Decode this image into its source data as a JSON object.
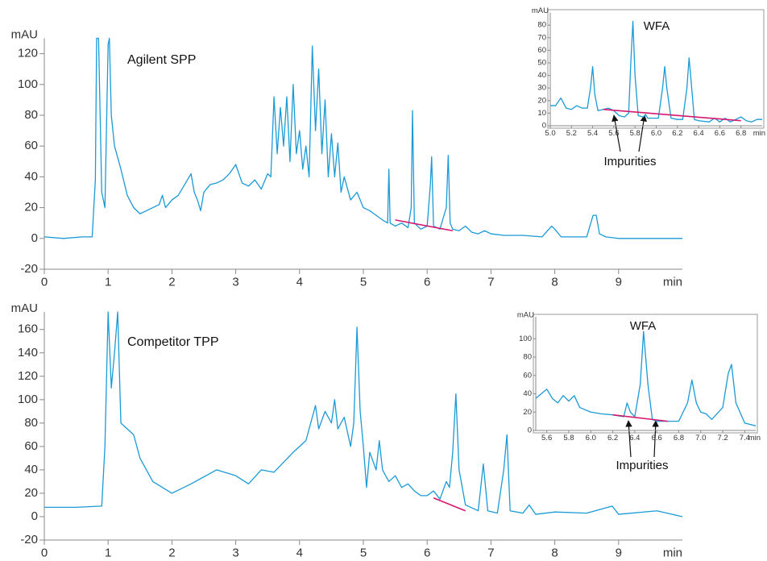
{
  "chart_data": [
    {
      "type": "line",
      "title": "Agilent SPP",
      "ylabel": "mAU",
      "xlabel": "min",
      "xlim": [
        0,
        10
      ],
      "ylim": [
        -20,
        130
      ],
      "xticks": [
        0,
        1,
        2,
        3,
        4,
        5,
        6,
        7,
        8,
        9
      ],
      "yticks": [
        -20,
        0,
        20,
        40,
        60,
        80,
        100,
        120
      ],
      "series": [
        {
          "color": "#1a9ad6",
          "x": [
            0,
            0.3,
            0.6,
            0.75,
            0.8,
            0.82,
            0.85,
            0.9,
            0.95,
            1.0,
            1.02,
            1.05,
            1.1,
            1.2,
            1.3,
            1.4,
            1.5,
            1.6,
            1.7,
            1.8,
            1.85,
            1.9,
            2.0,
            2.1,
            2.2,
            2.3,
            2.35,
            2.4,
            2.45,
            2.5,
            2.6,
            2.7,
            2.8,
            2.9,
            3.0,
            3.1,
            3.2,
            3.3,
            3.4,
            3.5,
            3.55,
            3.6,
            3.65,
            3.7,
            3.75,
            3.8,
            3.85,
            3.9,
            3.95,
            4.0,
            4.05,
            4.1,
            4.15,
            4.2,
            4.25,
            4.3,
            4.35,
            4.4,
            4.45,
            4.5,
            4.55,
            4.6,
            4.65,
            4.7,
            4.8,
            4.9,
            5.0,
            5.1,
            5.2,
            5.3,
            5.38,
            5.4,
            5.42,
            5.5,
            5.6,
            5.7,
            5.75,
            5.77,
            5.8,
            5.9,
            6.0,
            6.05,
            6.07,
            6.1,
            6.2,
            6.3,
            6.33,
            6.36,
            6.4,
            6.5,
            6.6,
            6.7,
            6.8,
            6.9,
            7.0,
            7.2,
            7.5,
            7.8,
            7.95,
            8.0,
            8.1,
            8.3,
            8.5,
            8.6,
            8.65,
            8.7,
            8.8,
            9.0,
            9.5,
            10.0
          ],
          "values": [
            1,
            0,
            1,
            1,
            38,
            130,
            130,
            30,
            20,
            126,
            130,
            80,
            60,
            45,
            28,
            20,
            16,
            18,
            20,
            22,
            28,
            20,
            25,
            28,
            35,
            42,
            30,
            25,
            18,
            30,
            35,
            36,
            38,
            42,
            48,
            36,
            34,
            38,
            32,
            42,
            40,
            92,
            55,
            85,
            60,
            92,
            50,
            100,
            55,
            70,
            45,
            60,
            40,
            125,
            70,
            110,
            55,
            90,
            40,
            68,
            40,
            62,
            30,
            40,
            25,
            30,
            20,
            18,
            15,
            12,
            10,
            45,
            10,
            8,
            10,
            7,
            20,
            83,
            10,
            6,
            8,
            35,
            53,
            8,
            6,
            20,
            54,
            10,
            6,
            5,
            8,
            4,
            3,
            5,
            3,
            2,
            2,
            1,
            8,
            6,
            1,
            1,
            1,
            15,
            15,
            3,
            1,
            0,
            0,
            0
          ]
        },
        {
          "color": "#d6176e",
          "x": [
            5.5,
            6.4
          ],
          "values": [
            12,
            5
          ]
        }
      ],
      "annotations": []
    },
    {
      "type": "line",
      "ylabel": "mAU",
      "xlabel": "min",
      "xlim": [
        5.0,
        7.0
      ],
      "ylim": [
        0,
        90
      ],
      "xticks": [
        {
          "value": 5,
          "label": "5.0"
        },
        5.2,
        5.4,
        5.6,
        5.8,
        {
          "value": 6,
          "label": "6.0"
        },
        6.2,
        6.4,
        6.6,
        6.8
      ],
      "yticks": [
        0,
        10,
        20,
        30,
        40,
        50,
        60,
        70,
        80
      ],
      "series": [
        {
          "color": "#1a9ad6",
          "x": [
            5.0,
            5.05,
            5.1,
            5.15,
            5.2,
            5.25,
            5.3,
            5.35,
            5.38,
            5.4,
            5.42,
            5.45,
            5.5,
            5.55,
            5.6,
            5.65,
            5.7,
            5.74,
            5.76,
            5.78,
            5.8,
            5.83,
            5.88,
            5.9,
            5.92,
            5.97,
            6.02,
            6.06,
            6.08,
            6.1,
            6.14,
            6.2,
            6.25,
            6.29,
            6.31,
            6.33,
            6.36,
            6.4,
            6.5,
            6.55,
            6.6,
            6.65,
            6.7,
            6.75,
            6.8,
            6.85,
            6.9,
            6.95,
            7.0
          ],
          "values": [
            16,
            16,
            22,
            14,
            13,
            16,
            14,
            14,
            30,
            47,
            25,
            12,
            13,
            14,
            12,
            8,
            7,
            10,
            50,
            83,
            40,
            8,
            7,
            9,
            6,
            6,
            6,
            30,
            47,
            30,
            6,
            5,
            5,
            30,
            54,
            35,
            5,
            4,
            3,
            6,
            3,
            6,
            3,
            5,
            7,
            4,
            3,
            5,
            5
          ]
        },
        {
          "color": "#d6176e",
          "x": [
            5.5,
            6.8
          ],
          "values": [
            13,
            4
          ]
        }
      ],
      "annotations": [
        "WFA",
        "Impurities"
      ]
    },
    {
      "type": "line",
      "title": "Competitor TPP",
      "ylabel": "mAU",
      "xlabel": "min",
      "xlim": [
        0,
        10
      ],
      "ylim": [
        -20,
        175
      ],
      "xticks": [
        0,
        1,
        2,
        3,
        4,
        5,
        6,
        7,
        8,
        9
      ],
      "yticks": [
        -20,
        0,
        20,
        40,
        60,
        80,
        100,
        120,
        140,
        160
      ],
      "series": [
        {
          "color": "#1a9ad6",
          "x": [
            0,
            0.5,
            0.9,
            0.95,
            1.0,
            1.05,
            1.1,
            1.15,
            1.2,
            1.3,
            1.4,
            1.5,
            1.7,
            2.0,
            2.3,
            2.7,
            3.0,
            3.2,
            3.4,
            3.6,
            3.9,
            4.1,
            4.25,
            4.3,
            4.4,
            4.5,
            4.55,
            4.6,
            4.7,
            4.8,
            4.85,
            4.9,
            4.95,
            5.0,
            5.05,
            5.1,
            5.2,
            5.25,
            5.3,
            5.4,
            5.5,
            5.6,
            5.7,
            5.8,
            5.9,
            6.0,
            6.1,
            6.2,
            6.3,
            6.35,
            6.4,
            6.45,
            6.5,
            6.6,
            6.8,
            6.88,
            6.95,
            7.1,
            7.2,
            7.25,
            7.3,
            7.5,
            7.6,
            7.7,
            8.0,
            8.5,
            8.9,
            9.0,
            9.6,
            10
          ],
          "values": [
            8,
            8,
            9,
            60,
            175,
            110,
            140,
            175,
            80,
            75,
            70,
            50,
            30,
            20,
            28,
            40,
            35,
            28,
            40,
            38,
            55,
            65,
            95,
            75,
            90,
            80,
            100,
            75,
            85,
            60,
            80,
            162,
            90,
            60,
            25,
            55,
            40,
            65,
            40,
            30,
            35,
            25,
            28,
            22,
            18,
            18,
            22,
            15,
            30,
            25,
            55,
            105,
            40,
            10,
            5,
            45,
            5,
            3,
            40,
            70,
            5,
            3,
            10,
            2,
            4,
            3,
            9,
            2,
            5,
            0
          ]
        },
        {
          "color": "#d6176e",
          "x": [
            6.1,
            6.6
          ],
          "values": [
            16,
            5
          ]
        }
      ],
      "annotations": []
    },
    {
      "type": "line",
      "ylabel": "mAU",
      "xlabel": "min",
      "xlim": [
        5.5,
        7.5
      ],
      "ylim": [
        0,
        124
      ],
      "xticks": [
        5.6,
        5.8,
        {
          "value": 6,
          "label": "6.0"
        },
        6.2,
        6.4,
        6.6,
        6.8,
        {
          "value": 7,
          "label": "7.0"
        },
        7.2,
        7.4
      ],
      "yticks": [
        0,
        20,
        40,
        60,
        80,
        100
      ],
      "series": [
        {
          "color": "#1a9ad6",
          "x": [
            5.5,
            5.55,
            5.6,
            5.65,
            5.7,
            5.75,
            5.8,
            5.85,
            5.9,
            6.0,
            6.1,
            6.2,
            6.3,
            6.33,
            6.36,
            6.4,
            6.45,
            6.48,
            6.52,
            6.56,
            6.6,
            6.7,
            6.8,
            6.88,
            6.92,
            6.96,
            7.0,
            7.05,
            7.1,
            7.2,
            7.25,
            7.28,
            7.32,
            7.4,
            7.5
          ],
          "values": [
            35,
            40,
            45,
            35,
            30,
            38,
            32,
            38,
            25,
            20,
            18,
            17,
            15,
            30,
            20,
            15,
            50,
            108,
            50,
            12,
            10,
            10,
            10,
            30,
            55,
            30,
            20,
            18,
            12,
            25,
            62,
            72,
            30,
            8,
            5
          ]
        },
        {
          "color": "#d6176e",
          "x": [
            6.2,
            6.7
          ],
          "values": [
            17,
            10
          ]
        }
      ],
      "annotations": [
        "WFA",
        "Impurities"
      ]
    }
  ]
}
